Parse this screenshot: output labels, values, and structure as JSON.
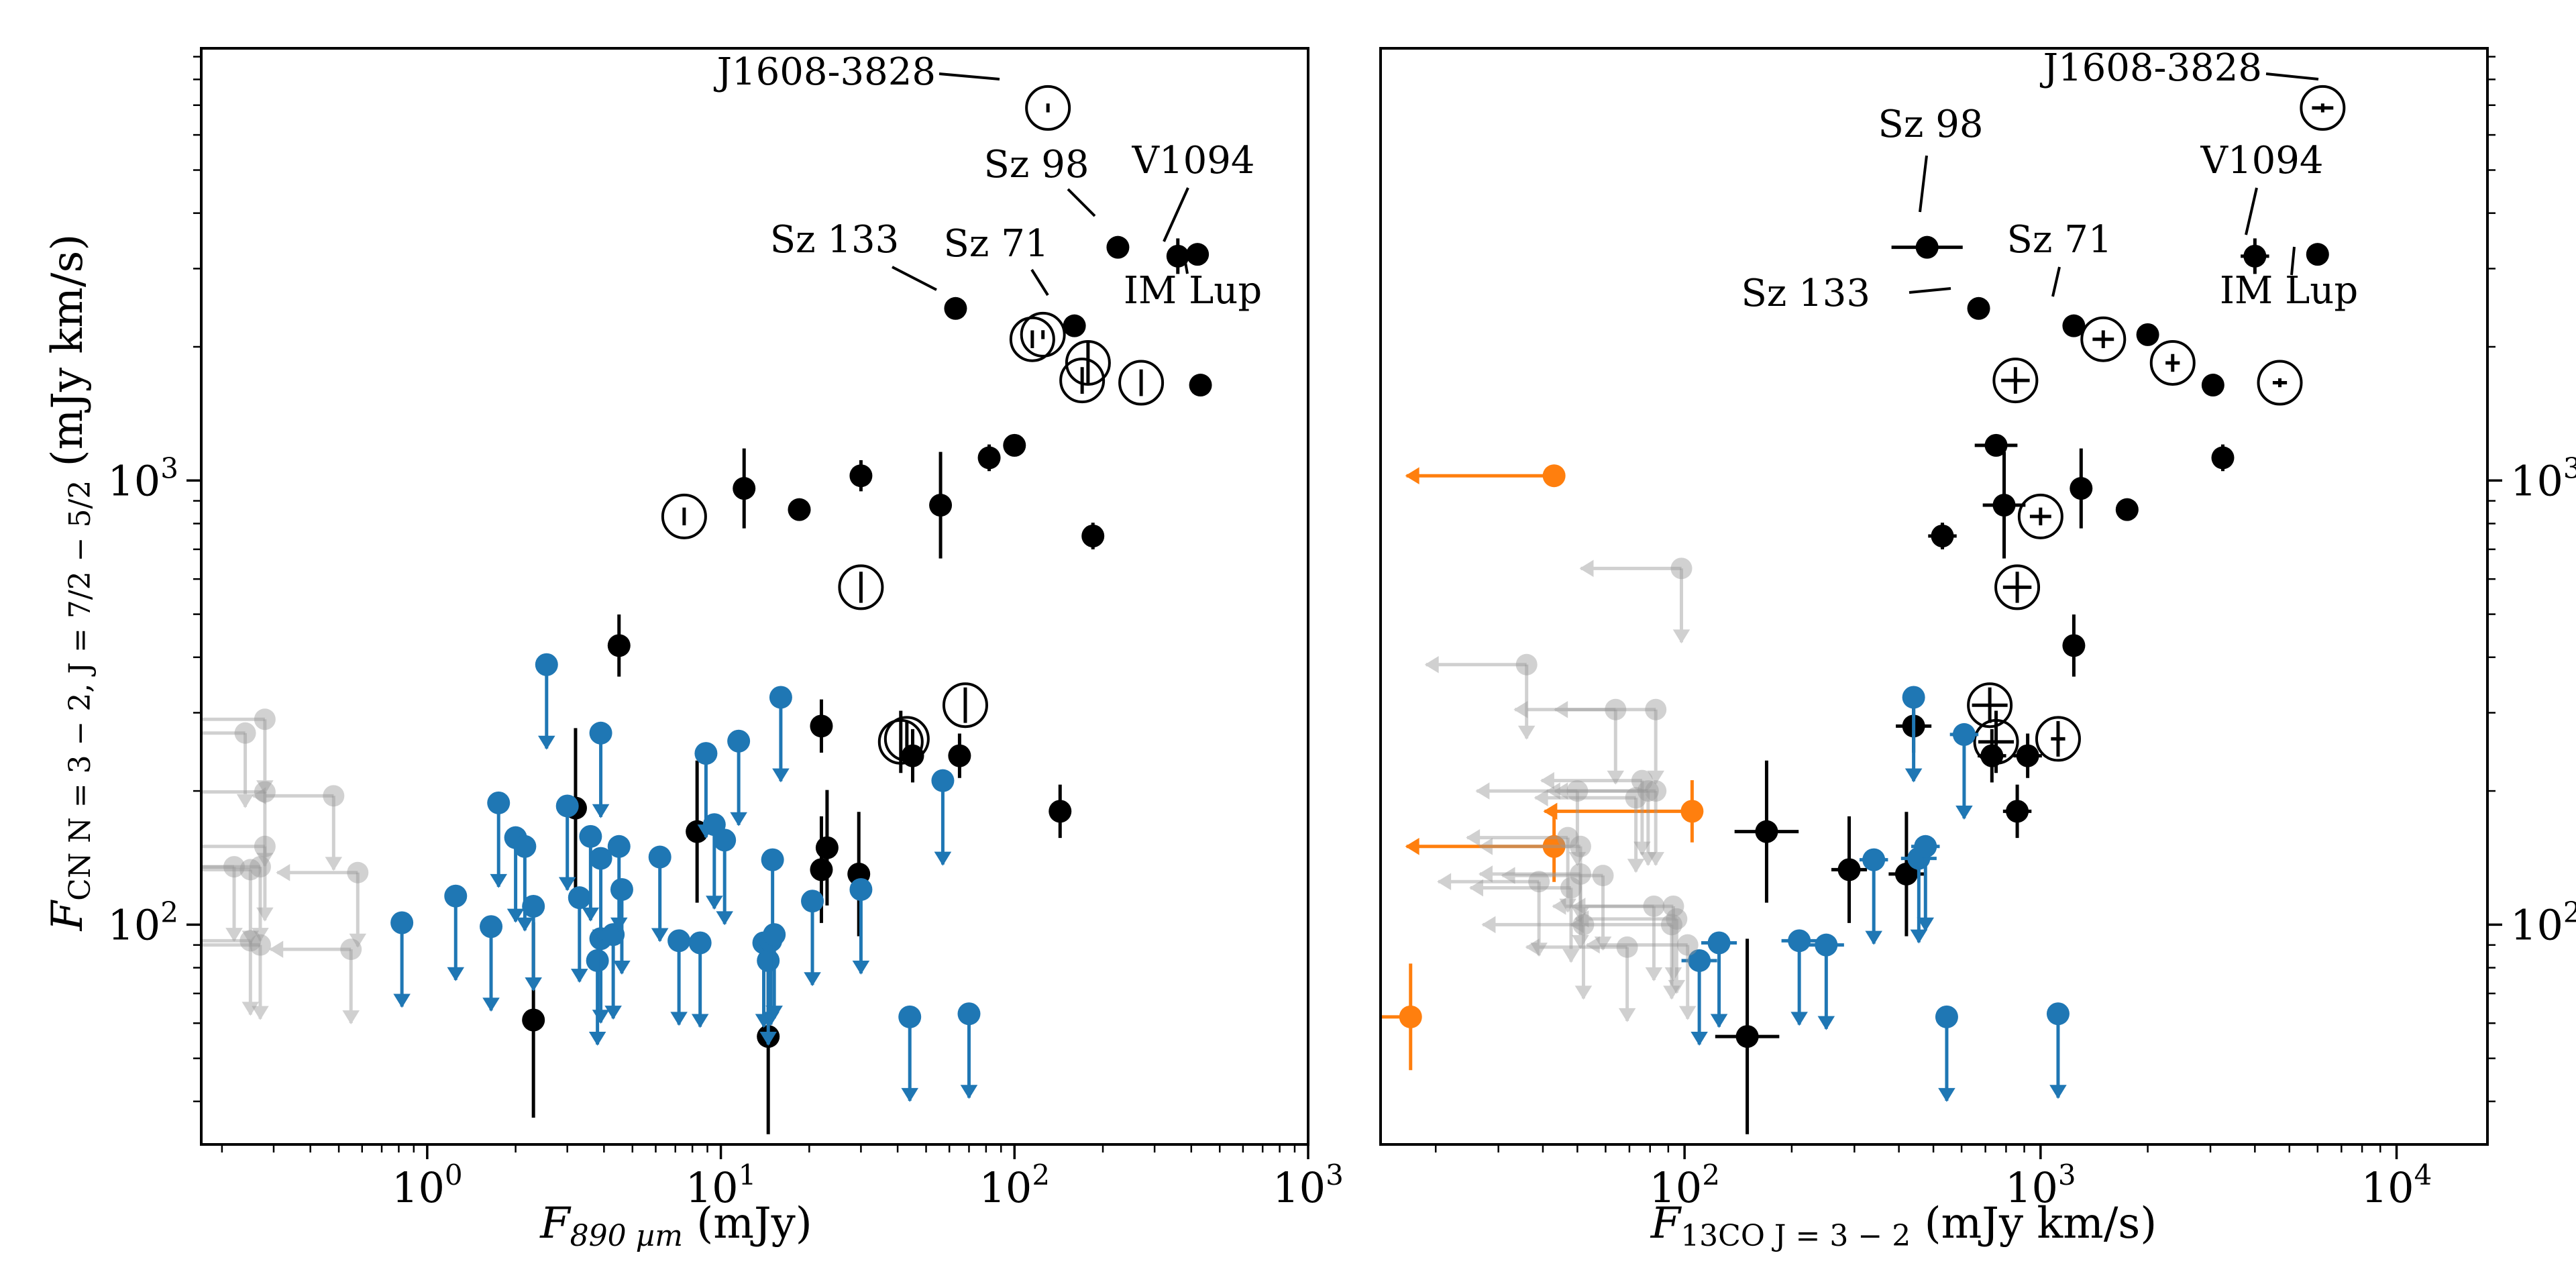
{
  "chart_data": [
    {
      "type": "scatter",
      "id": "left",
      "xscale": "log",
      "yscale": "log",
      "xlim": [
        0.17,
        1000
      ],
      "ylim": [
        32,
        9400
      ],
      "xticks": [
        {
          "v": 1,
          "b": "10",
          "e": "0"
        },
        {
          "v": 10,
          "b": "10",
          "e": "1"
        },
        {
          "v": 100,
          "b": "10",
          "e": "2"
        },
        {
          "v": 1000,
          "b": "10",
          "e": "3"
        }
      ],
      "yticks": [
        {
          "v": 100,
          "b": "10",
          "e": "2"
        },
        {
          "v": 1000,
          "b": "10",
          "e": "3"
        }
      ],
      "xlabel": "F890 µm (mJy)",
      "ylabel": "FCN N=3−2, J=7/2−5/2 (mJy km/s)",
      "xlabel_parts": {
        "main": "F",
        "sub": "890 µm",
        "unit": " (mJy)"
      },
      "ylabel_parts": {
        "main": "F",
        "sub": "CN N = 3 − 2, J = 7/2 − 5/2",
        "unit": " (mJy km/s)"
      },
      "series": [
        {
          "name": "detections",
          "color": "#000000",
          "points": [
            [
              2.3,
              61,
              null,
              0.22
            ],
            [
              3.2,
              183,
              null,
              0.18
            ],
            [
              4.5,
              425,
              null,
              0.07
            ],
            [
              8.3,
              162,
              null,
              0.16
            ],
            [
              12,
              960,
              null,
              0.09
            ],
            [
              14.5,
              56,
              null,
              0.22
            ],
            [
              18.5,
              860,
              null,
              0.02
            ],
            [
              22,
              133,
              null,
              0.12
            ],
            [
              22,
              280,
              null,
              0.06
            ],
            [
              23,
              149,
              null,
              0.13
            ],
            [
              29.5,
              130,
              null,
              0.14
            ],
            [
              30,
              1025,
              null,
              0.035
            ],
            [
              45,
              240,
              null,
              0.06
            ],
            [
              56,
              880,
              null,
              0.12
            ],
            [
              63,
              2440,
              null,
              0.01
            ],
            [
              65,
              240,
              null,
              0.05
            ],
            [
              82,
              1125,
              null,
              0.03
            ],
            [
              100,
              1200,
              null,
              0.02
            ],
            [
              143,
              180,
              null,
              0.06
            ],
            [
              160,
              2230,
              null,
              0.02
            ],
            [
              185,
              750,
              null,
              0.03
            ],
            [
              225,
              3350,
              null,
              0.01
            ],
            [
              360,
              3200,
              null,
              0.04
            ],
            [
              420,
              3230,
              null,
              0.01
            ],
            [
              430,
              1640,
              null,
              0.025
            ]
          ]
        },
        {
          "name": "open",
          "color": "#000000",
          "points": [
            [
              7.5,
              830,
              null,
              0.02
            ],
            [
              30,
              575,
              null,
              0.035
            ],
            [
              41,
              258,
              null,
              0.07
            ],
            [
              43,
              262,
              null,
              0.04
            ],
            [
              68,
              312,
              null,
              0.04
            ],
            [
              115,
              2080,
              null,
              0.02
            ],
            [
              125,
              2130,
              null,
              0.01
            ],
            [
              130,
              6900,
              null,
              0.01
            ],
            [
              170,
              1680,
              null,
              0.03
            ],
            [
              178,
              1840,
              null,
              0.05
            ],
            [
              270,
              1660,
              null,
              0.03
            ]
          ]
        },
        {
          "name": "upper-limits",
          "color": "#1f77b4",
          "points": [
            [
              0.82,
              101
            ],
            [
              1.25,
              116
            ],
            [
              1.65,
              99
            ],
            [
              1.75,
              188
            ],
            [
              2.0,
              157
            ],
            [
              2.15,
              150
            ],
            [
              2.3,
              110
            ],
            [
              2.55,
              385
            ],
            [
              3.0,
              185
            ],
            [
              3.3,
              115
            ],
            [
              3.6,
              158
            ],
            [
              3.8,
              83
            ],
            [
              3.9,
              93
            ],
            [
              3.9,
              141
            ],
            [
              3.9,
              270
            ],
            [
              4.3,
              95
            ],
            [
              4.5,
              150
            ],
            [
              4.6,
              120
            ],
            [
              6.2,
              142
            ],
            [
              7.2,
              92
            ],
            [
              8.5,
              91
            ],
            [
              8.9,
              243
            ],
            [
              9.5,
              168
            ],
            [
              10.3,
              155
            ],
            [
              11.5,
              259
            ],
            [
              14,
              91
            ],
            [
              14.5,
              83
            ],
            [
              14.8,
              92
            ],
            [
              15,
              140
            ],
            [
              15.2,
              95
            ],
            [
              16,
              325
            ],
            [
              20.5,
              113
            ],
            [
              30,
              120
            ],
            [
              44,
              62
            ],
            [
              57,
              211
            ],
            [
              70,
              63
            ]
          ]
        },
        {
          "name": "faded-limits",
          "color": "#bbbbbb",
          "points": [
            [
              0.22,
              135
            ],
            [
              0.24,
              270
            ],
            [
              0.25,
              133
            ],
            [
              0.25,
              92
            ],
            [
              0.27,
              135
            ],
            [
              0.27,
              90
            ],
            [
              0.28,
              290
            ],
            [
              0.28,
              199
            ],
            [
              0.28,
              150
            ],
            [
              0.48,
              195
            ],
            [
              0.55,
              88
            ],
            [
              0.58,
              131
            ]
          ]
        }
      ],
      "annotations": [
        {
          "text": "J1608-3828",
          "x": 130,
          "y": 6900
        },
        {
          "text": "Sz 133",
          "x": 63,
          "y": 2440
        },
        {
          "text": "Sz 98",
          "x": 225,
          "y": 3350
        },
        {
          "text": "Sz 71",
          "x": 160,
          "y": 2230
        },
        {
          "text": "V1094",
          "x": 360,
          "y": 3200
        },
        {
          "text": "IM Lup",
          "x": 420,
          "y": 3230
        }
      ]
    },
    {
      "type": "scatter",
      "id": "right",
      "xscale": "log",
      "yscale": "log",
      "xlim": [
        14,
        18000
      ],
      "ylim": [
        32,
        9400
      ],
      "xticks": [
        {
          "v": 100,
          "b": "10",
          "e": "2"
        },
        {
          "v": 1000,
          "b": "10",
          "e": "3"
        },
        {
          "v": 10000,
          "b": "10",
          "e": "4"
        }
      ],
      "yticks": [
        {
          "v": 100,
          "b": "10",
          "e": "2"
        },
        {
          "v": 1000,
          "b": "10",
          "e": "3"
        }
      ],
      "xlabel": "F13CO J=3−2 (mJy km/s)",
      "xlabel_parts": {
        "main": "F",
        "sub": "13CO J = 3 − 2",
        "unit": " (mJy km/s)"
      },
      "series": [
        {
          "name": "detections",
          "color": "#000000",
          "points": [
            [
              150,
              56,
              0.09,
              0.22
            ],
            [
              170,
              162,
              0.09,
              0.16
            ],
            [
              290,
              133,
              0.05,
              0.12
            ],
            [
              420,
              130,
              0.05,
              0.14
            ],
            [
              440,
              280,
              0.05,
              0.06
            ],
            [
              480,
              3350,
              0.1,
              0.01
            ],
            [
              530,
              750,
              0.04,
              0.03
            ],
            [
              670,
              2440,
              0.03,
              0.01
            ],
            [
              730,
              240,
              0.04,
              0.06
            ],
            [
              750,
              1200,
              0.06,
              0.02
            ],
            [
              790,
              880,
              0.06,
              0.12
            ],
            [
              860,
              180,
              0.04,
              0.06
            ],
            [
              920,
              240,
              0.04,
              0.05
            ],
            [
              1240,
              2230,
              0.03,
              0.02
            ],
            [
              1240,
              425,
              0.02,
              0.07
            ],
            [
              1300,
              960,
              0.03,
              0.09
            ],
            [
              1750,
              860,
              0.02,
              0.02
            ],
            [
              2000,
              2130,
              0.02,
              0.01
            ],
            [
              3050,
              1640,
              0.02,
              0.025
            ],
            [
              3250,
              1125,
              0.02,
              0.03
            ],
            [
              4000,
              3200,
              0.04,
              0.04
            ],
            [
              6000,
              3230,
              0.01,
              0.01
            ]
          ]
        },
        {
          "name": "open",
          "color": "#000000",
          "points": [
            [
              720,
              312,
              0.05,
              0.04
            ],
            [
              750,
              258,
              0.05,
              0.07
            ],
            [
              850,
              1680,
              0.04,
              0.03
            ],
            [
              860,
              575,
              0.04,
              0.035
            ],
            [
              1000,
              830,
              0.03,
              0.02
            ],
            [
              1120,
              262,
              0.02,
              0.04
            ],
            [
              1500,
              2080,
              0.03,
              0.02
            ],
            [
              2350,
              1840,
              0.02,
              0.02
            ],
            [
              4700,
              1660,
              0.02,
              0.01
            ],
            [
              6200,
              6900,
              0.03,
              0.01
            ]
          ]
        },
        {
          "name": "upper-limits",
          "color": "#1f77b4",
          "points": [
            [
              110,
              83,
              0.05
            ],
            [
              125,
              91,
              0.05
            ],
            [
              210,
              92,
              0.05
            ],
            [
              250,
              90,
              0.05
            ],
            [
              340,
              140,
              0.04
            ],
            [
              440,
              325,
              0.01
            ],
            [
              455,
              141,
              0.05
            ],
            [
              475,
              150,
              0.04
            ],
            [
              545,
              62,
              0.03
            ],
            [
              610,
              268,
              0.04
            ],
            [
              1120,
              63,
              0.01
            ]
          ]
        },
        {
          "name": "orange",
          "color": "#ff7f0e",
          "points": [
            [
              17,
              62,
              null,
              0.12
            ],
            [
              43,
              1025,
              null,
              null
            ],
            [
              43,
              150,
              null,
              0.08
            ],
            [
              105,
              180,
              null,
              0.07
            ]
          ]
        },
        {
          "name": "faded",
          "color": "#bbbbbb",
          "points": [
            [
              36,
              385
            ],
            [
              39,
              125
            ],
            [
              47,
              157
            ],
            [
              48,
              121
            ],
            [
              50,
              200
            ],
            [
              51,
              150
            ],
            [
              51,
              130
            ],
            [
              52,
              100
            ],
            [
              59,
              129
            ],
            [
              64,
              305
            ],
            [
              69,
              89
            ],
            [
              73,
              193
            ],
            [
              76,
              211
            ],
            [
              79,
              200
            ],
            [
              82,
              110
            ],
            [
              83,
              305
            ],
            [
              83,
              200
            ],
            [
              92,
              100
            ],
            [
              93,
              110
            ],
            [
              95,
              103
            ],
            [
              98,
              634
            ],
            [
              102,
              90
            ]
          ]
        }
      ],
      "annotations": [
        {
          "text": "J1608-3828",
          "x": 6200,
          "y": 6900
        },
        {
          "text": "Sz 98",
          "x": 480,
          "y": 3350
        },
        {
          "text": "V1094",
          "x": 4000,
          "y": 3200
        },
        {
          "text": "Sz 71",
          "x": 1240,
          "y": 2230
        },
        {
          "text": "Sz 133",
          "x": 670,
          "y": 2440
        },
        {
          "text": "IM Lup",
          "x": 6000,
          "y": 3230
        }
      ]
    }
  ]
}
